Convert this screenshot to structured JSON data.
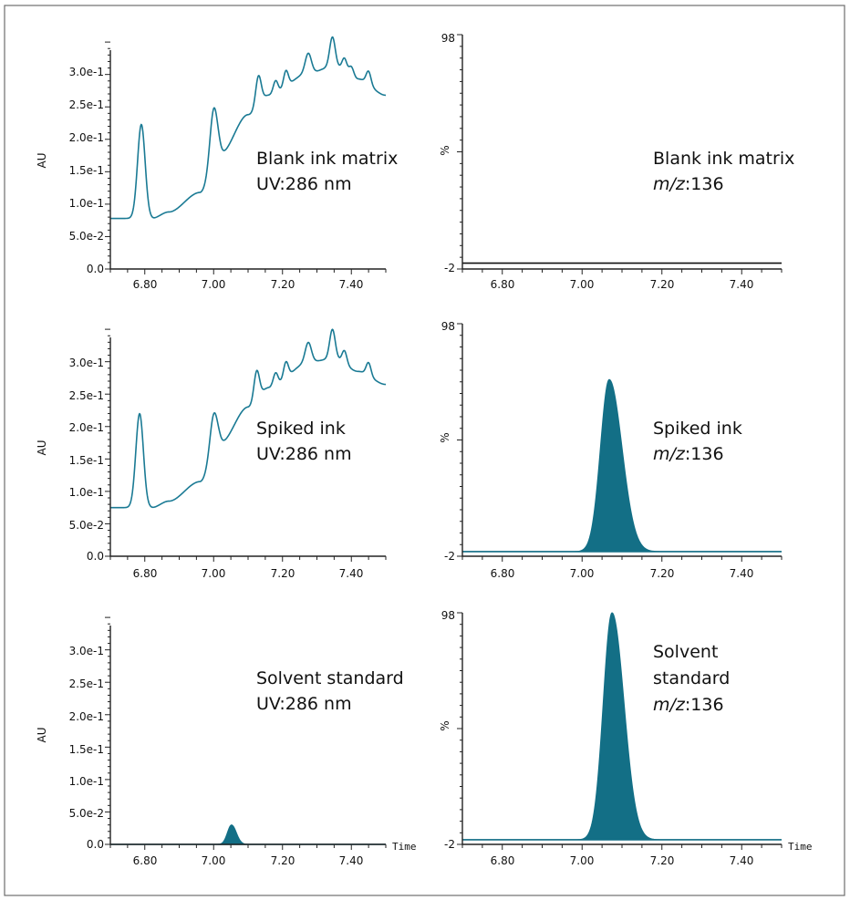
{
  "chart_data": [
    {
      "id": "uv_blank",
      "type": "line",
      "ylabel": "AU",
      "ylim": [
        0,
        0.36
      ],
      "xlim": [
        6.7,
        7.5
      ],
      "x_ticks": [
        "6.80",
        "7.00",
        "7.20",
        "7.40"
      ],
      "y_ticks": [
        "0.0",
        "5.0e-2",
        "1.0e-1",
        "1.5e-1",
        "2.0e-1",
        "2.5e-1",
        "3.0e-1"
      ],
      "annotation": [
        "Blank ink matrix",
        "UV:286 nm"
      ],
      "baseline": 0.078,
      "peaks": [
        {
          "t": 6.79,
          "h": 0.145,
          "w": 0.011
        },
        {
          "t": 7.0,
          "h": 0.085,
          "w": 0.011
        },
        {
          "t": 7.13,
          "h": 0.045,
          "w": 0.008
        },
        {
          "t": 7.18,
          "h": 0.02,
          "w": 0.007
        },
        {
          "t": 7.21,
          "h": 0.025,
          "w": 0.007
        },
        {
          "t": 7.275,
          "h": 0.03,
          "w": 0.009
        },
        {
          "t": 7.345,
          "h": 0.045,
          "w": 0.008
        },
        {
          "t": 7.38,
          "h": 0.02,
          "w": 0.007
        },
        {
          "t": 7.4,
          "h": 0.015,
          "w": 0.007
        },
        {
          "t": 7.45,
          "h": 0.02,
          "w": 0.007
        }
      ],
      "ramp": [
        [
          6.7,
          0
        ],
        [
          6.82,
          0
        ],
        [
          6.87,
          0.01
        ],
        [
          6.96,
          0.04
        ],
        [
          7.02,
          0.1
        ],
        [
          7.1,
          0.16
        ],
        [
          7.16,
          0.19
        ],
        [
          7.28,
          0.225
        ],
        [
          7.35,
          0.235
        ],
        [
          7.42,
          0.215
        ],
        [
          7.5,
          0.19
        ]
      ]
    },
    {
      "id": "ms_blank",
      "type": "line",
      "ylabel": "%",
      "ylim": [
        -2,
        98
      ],
      "xlim": [
        6.7,
        7.5
      ],
      "x_ticks": [
        "6.80",
        "7.00",
        "7.20",
        "7.40"
      ],
      "y_ticks": [
        "-2",
        "98"
      ],
      "annotation": [
        "Blank ink matrix",
        "m/z",
        ":136"
      ],
      "baseline": 0.5,
      "peaks": []
    },
    {
      "id": "uv_spiked",
      "type": "line",
      "ylabel": "AU",
      "ylim": [
        0,
        0.36
      ],
      "xlim": [
        6.7,
        7.5
      ],
      "x_ticks": [
        "6.80",
        "7.00",
        "7.20",
        "7.40"
      ],
      "y_ticks": [
        "0.0",
        "5.0e-2",
        "1.0e-1",
        "1.5e-1",
        "2.0e-1",
        "2.5e-1",
        "3.0e-1"
      ],
      "annotation": [
        "Spiked ink",
        "UV:286 nm"
      ],
      "baseline": 0.075,
      "peaks": [
        {
          "t": 6.785,
          "h": 0.145,
          "w": 0.011
        },
        {
          "t": 7.0,
          "h": 0.06,
          "w": 0.011
        },
        {
          "t": 7.125,
          "h": 0.045,
          "w": 0.008
        },
        {
          "t": 7.18,
          "h": 0.02,
          "w": 0.007
        },
        {
          "t": 7.21,
          "h": 0.025,
          "w": 0.007
        },
        {
          "t": 7.275,
          "h": 0.03,
          "w": 0.009
        },
        {
          "t": 7.345,
          "h": 0.045,
          "w": 0.008
        },
        {
          "t": 7.38,
          "h": 0.02,
          "w": 0.007
        },
        {
          "t": 7.45,
          "h": 0.02,
          "w": 0.007
        }
      ],
      "ramp": [
        [
          6.7,
          0
        ],
        [
          6.82,
          0
        ],
        [
          6.87,
          0.01
        ],
        [
          6.96,
          0.04
        ],
        [
          7.02,
          0.1
        ],
        [
          7.1,
          0.155
        ],
        [
          7.16,
          0.185
        ],
        [
          7.28,
          0.225
        ],
        [
          7.35,
          0.23
        ],
        [
          7.42,
          0.21
        ],
        [
          7.5,
          0.19
        ]
      ]
    },
    {
      "id": "ms_spiked",
      "type": "area",
      "ylabel": "%",
      "ylim": [
        -2,
        98
      ],
      "xlim": [
        6.7,
        7.5
      ],
      "x_ticks": [
        "6.80",
        "7.00",
        "7.20",
        "7.40"
      ],
      "y_ticks": [
        "-2",
        "98"
      ],
      "annotation": [
        "Spiked ink",
        "m/z",
        ":136"
      ],
      "baseline": 0,
      "peaks": [
        {
          "t": 7.068,
          "h": 74,
          "w_left": 0.022,
          "w_right": 0.032
        }
      ]
    },
    {
      "id": "uv_solvent",
      "type": "area",
      "ylabel": "AU",
      "ylim": [
        0,
        0.36
      ],
      "xlim": [
        6.7,
        7.5
      ],
      "x_ticks": [
        "6.80",
        "7.00",
        "7.20",
        "7.40"
      ],
      "y_ticks": [
        "0.0",
        "5.0e-2",
        "1.0e-1",
        "1.5e-1",
        "2.0e-1",
        "2.5e-1",
        "3.0e-1"
      ],
      "x_axis_title": "Time",
      "annotation": [
        "Solvent standard",
        "UV:286 nm"
      ],
      "baseline": 0,
      "peaks": [
        {
          "t": 7.052,
          "h": 0.03,
          "w_left": 0.012,
          "w_right": 0.014
        }
      ]
    },
    {
      "id": "ms_solvent",
      "type": "area",
      "ylabel": "%",
      "ylim": [
        -2,
        98
      ],
      "xlim": [
        6.7,
        7.5
      ],
      "x_ticks": [
        "6.80",
        "7.00",
        "7.20",
        "7.40"
      ],
      "y_ticks": [
        "-2",
        "98"
      ],
      "x_axis_title": "Time",
      "annotation": [
        "Solvent",
        "standard",
        "m/z",
        ":136"
      ],
      "baseline": 0,
      "peaks": [
        {
          "t": 7.075,
          "h": 98,
          "w_left": 0.022,
          "w_right": 0.03
        }
      ]
    }
  ],
  "colors": {
    "trace": "#1a7a94",
    "fill": "#136f86",
    "axis": "#222222",
    "frame": "#6d6d6d"
  }
}
